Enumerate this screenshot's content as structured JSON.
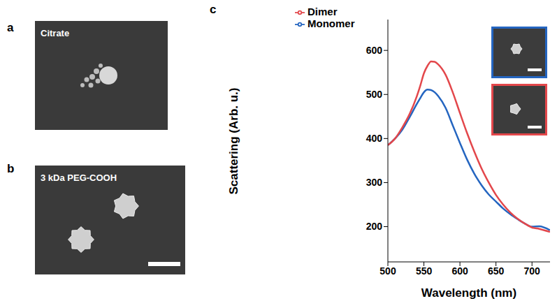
{
  "panels": [
    {
      "letter": "a",
      "label": "Citrate"
    },
    {
      "letter": "b",
      "label": "3 kDa PEG-COOH"
    }
  ],
  "chart_letter": "c",
  "chart_data": {
    "type": "line",
    "x_label": "Wavelength (nm)",
    "y_label": "Scattering (Arb. u.)",
    "xlim": [
      500,
      725
    ],
    "xticks": [
      500,
      550,
      600,
      650,
      700
    ],
    "ylim": [
      120,
      670
    ],
    "yticks": [
      200,
      300,
      400,
      500,
      600
    ],
    "grid": false,
    "legend": "upper left",
    "x": [
      500,
      510,
      520,
      530,
      540,
      545,
      550,
      555,
      560,
      565,
      570,
      580,
      590,
      600,
      610,
      620,
      630,
      640,
      650,
      660,
      670,
      680,
      690,
      700,
      710,
      725
    ],
    "series": [
      {
        "name": "Monomer",
        "color": "#2465c0",
        "values": [
          385,
          400,
          420,
          448,
          478,
          492,
          505,
          511,
          510,
          505,
          496,
          470,
          430,
          390,
          352,
          320,
          294,
          273,
          257,
          241,
          228,
          217,
          207,
          200,
          201,
          192
        ]
      },
      {
        "name": "Dimer",
        "color": "#e3474b",
        "values": [
          385,
          400,
          425,
          455,
          495,
          520,
          548,
          565,
          575,
          574,
          568,
          545,
          505,
          458,
          412,
          370,
          332,
          300,
          272,
          250,
          232,
          218,
          207,
          198,
          195,
          188
        ]
      }
    ]
  }
}
